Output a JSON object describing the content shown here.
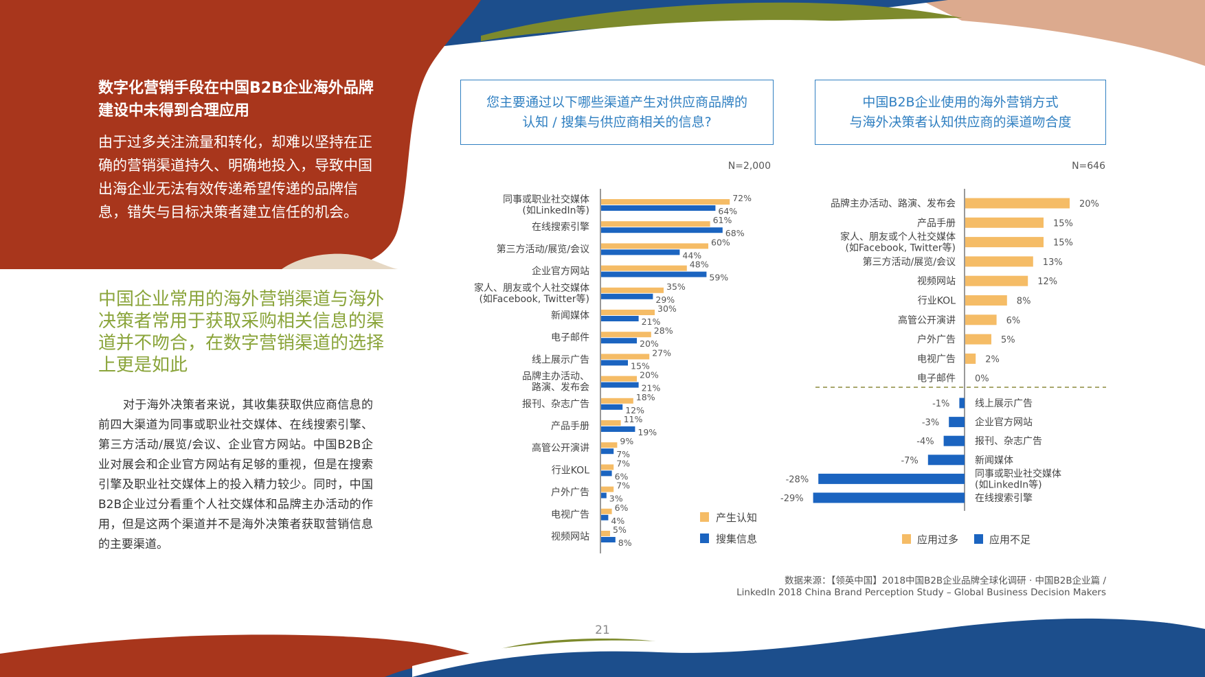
{
  "left": {
    "heading": "数字化营销手段在中国B2B企业海外品牌建设中未得到合理应用",
    "intro": "由于过多关注流量和转化，却难以坚持在正确的营销渠道持久、明确地投入，导致中国出海企业无法有效传递希望传递的品牌信息，错失与目标决策者建立信任的机会。",
    "highlight": "中国企业常用的海外营销渠道与海外决策者常用于获取采购相关信息的渠道并不吻合，在数字营销渠道的选择上更是如此",
    "body": "对于海外决策者来说，其收集获取供应商信息的前四大渠道为同事或职业社交媒体、在线搜索引擎、第三方活动/展览/会议、企业官方网站。中国B2B企业对展会和企业官方网站有足够的重视，但是在搜索引擎及职业社交媒体上的投入精力较少。同时，中国B2B企业过分看重个人社交媒体和品牌主办活动的作用，但是这两个渠道并不是海外决策者获取营销信息的主要渠道。"
  },
  "colors": {
    "orange": "#f5bc66",
    "blue": "#1b64c0",
    "red_bg": "#a8361c",
    "green_bg": "#7d8a2c",
    "navy_bg": "#1c4e8c"
  },
  "chart_data": [
    {
      "type": "bar",
      "orientation": "horizontal",
      "title_lines": [
        "您主要通过以下哪些渠道产生对供应商品牌的",
        "认知 / 搜集与供应商相关的信息?"
      ],
      "n_label": "N=2,000",
      "categories": [
        [
          "同事或职业社交媒体",
          "(如LinkedIn等)"
        ],
        [
          "在线搜索引擎"
        ],
        [
          "第三方活动/展览/会议"
        ],
        [
          "企业官方网站"
        ],
        [
          "家人、朋友或个人社交媒体",
          "(如Facebook, Twitter等)"
        ],
        [
          "新闻媒体"
        ],
        [
          "电子邮件"
        ],
        [
          "线上展示广告"
        ],
        [
          "品牌主办活动、",
          "路演、发布会"
        ],
        [
          "报刊、杂志广告"
        ],
        [
          "产品手册"
        ],
        [
          "高管公开演讲"
        ],
        [
          "行业KOL"
        ],
        [
          "户外广告"
        ],
        [
          "电视广告"
        ],
        [
          "视频网站"
        ]
      ],
      "series": [
        {
          "name": "产生认知",
          "color": "#f5bc66",
          "values": [
            72,
            61,
            60,
            48,
            35,
            30,
            28,
            27,
            20,
            18,
            11,
            9,
            7,
            7,
            6,
            5
          ]
        },
        {
          "name": "搜集信息",
          "color": "#1b64c0",
          "values": [
            64,
            68,
            44,
            59,
            29,
            21,
            20,
            15,
            21,
            12,
            19,
            7,
            6,
            3,
            4,
            8
          ]
        }
      ],
      "value_suffix": "%",
      "legend_position": "bottom-right"
    },
    {
      "type": "bar",
      "orientation": "horizontal-diverging",
      "title_lines": [
        "中国B2B企业使用的海外营销方式",
        "与海外决策者认知供应商的渠道吻合度"
      ],
      "n_label": "N=646",
      "positive": {
        "series": "应用过多",
        "color": "#f5bc66",
        "categories": [
          [
            "品牌主办活动、路演、发布会"
          ],
          [
            "产品手册"
          ],
          [
            "家人、朋友或个人社交媒体",
            "(如Facebook, Twitter等)"
          ],
          [
            "第三方活动/展览/会议"
          ],
          [
            "视频网站"
          ],
          [
            "行业KOL"
          ],
          [
            "高管公开演讲"
          ],
          [
            "户外广告"
          ],
          [
            "电视广告"
          ],
          [
            "电子邮件"
          ]
        ],
        "values": [
          20,
          15,
          15,
          13,
          12,
          8,
          6,
          5,
          2,
          0
        ]
      },
      "negative": {
        "series": "应用不足",
        "color": "#1b64c0",
        "categories": [
          [
            "线上展示广告"
          ],
          [
            "企业官方网站"
          ],
          [
            "报刊、杂志广告"
          ],
          [
            "新闻媒体"
          ],
          [
            "同事或职业社交媒体",
            "(如LinkedIn等)"
          ],
          [
            "在线搜索引擎"
          ]
        ],
        "values": [
          -1,
          -3,
          -4,
          -7,
          -28,
          -29
        ]
      },
      "value_suffix": "%",
      "legend_position": "bottom"
    }
  ],
  "source": {
    "line1": "数据来源：【领英中国】2018中国B2B企业品牌全球化调研 · 中国B2B企业篇 /",
    "line2": "LinkedIn 2018 China Brand Perception Study – Global Business Decision Makers"
  },
  "page_number": "21"
}
